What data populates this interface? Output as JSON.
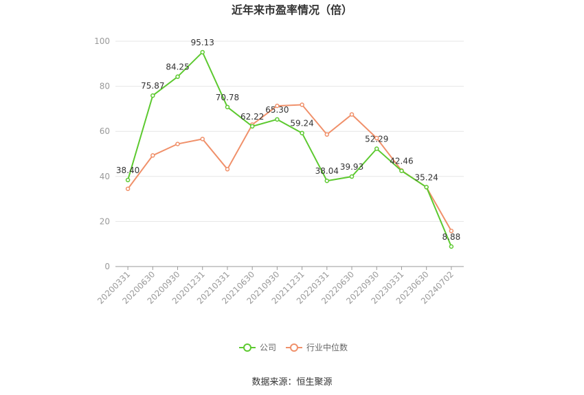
{
  "chart_data": {
    "type": "line",
    "title": "近年来市盈率情况（倍）",
    "categories": [
      "20200331",
      "20200630",
      "20200930",
      "20201231",
      "20210331",
      "20210630",
      "20210930",
      "20211231",
      "20220331",
      "20220630",
      "20220930",
      "20230331",
      "20230630",
      "20240702"
    ],
    "series": [
      {
        "name": "公司",
        "color": "#5cc92f",
        "values": [
          38.4,
          75.87,
          84.25,
          95.13,
          70.78,
          62.22,
          65.3,
          59.24,
          38.04,
          39.93,
          52.29,
          42.46,
          35.24,
          8.88
        ],
        "labels": [
          "38.40",
          "75.87",
          "84.25",
          "95.13",
          "70.78",
          "62.22",
          "65.30",
          "59.24",
          "38.04",
          "39.93",
          "52.29",
          "42.46",
          "35.24",
          "8.88"
        ]
      },
      {
        "name": "行业中位数",
        "color": "#f0906a",
        "values": [
          34.5,
          49.3,
          54.4,
          56.6,
          43.2,
          63.0,
          71.3,
          71.8,
          58.6,
          67.5,
          57.0,
          42.6,
          35.2,
          15.8
        ]
      }
    ],
    "ylim": [
      0,
      100
    ],
    "yticks": [
      "0",
      "20",
      "40",
      "60",
      "80",
      "100"
    ],
    "grid": true,
    "legend_position": "bottom"
  },
  "source_text": "数据来源：恒生聚源"
}
